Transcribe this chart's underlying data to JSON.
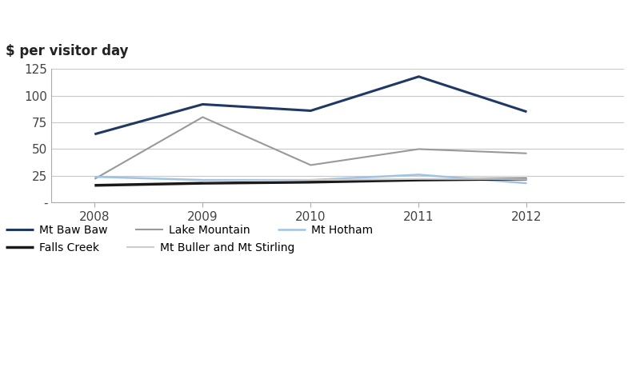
{
  "years": [
    2008,
    2009,
    2010,
    2011,
    2012
  ],
  "series_order": [
    "Mt Baw Baw",
    "Lake Mountain",
    "Mt Hotham",
    "Falls Creek",
    "Mt Buller and Mt Stirling"
  ],
  "series": {
    "Mt Baw Baw": {
      "values": [
        64,
        92,
        86,
        118,
        85
      ],
      "color": "#1F3864",
      "linewidth": 2.2
    },
    "Lake Mountain": {
      "values": [
        22,
        80,
        35,
        50,
        46
      ],
      "color": "#999999",
      "linewidth": 1.5
    },
    "Mt Hotham": {
      "values": [
        24,
        21,
        21,
        26,
        18
      ],
      "color": "#9DC3E6",
      "linewidth": 1.8
    },
    "Falls Creek": {
      "values": [
        16,
        18,
        19,
        21,
        22
      ],
      "color": "#1A1A1A",
      "linewidth": 2.5
    },
    "Mt Buller and Mt Stirling": {
      "values": [
        20,
        21,
        22,
        22
      ],
      "years": [
        2009,
        2010,
        2011,
        2012
      ],
      "color": "#CCCCCC",
      "linewidth": 1.5
    }
  },
  "title": "$ per visitor day",
  "ylim": [
    0,
    125
  ],
  "yticks": [
    0,
    25,
    50,
    75,
    100,
    125
  ],
  "ytick_labels": [
    "-",
    "25",
    "50",
    "75",
    "100",
    "125"
  ],
  "xlim_left": 2007.6,
  "xlim_right": 2012.9,
  "legend_row1": [
    "Mt Baw Baw",
    "Lake Mountain",
    "Mt Hotham"
  ],
  "legend_row2": [
    "Falls Creek",
    "Mt Buller and Mt Stirling"
  ]
}
